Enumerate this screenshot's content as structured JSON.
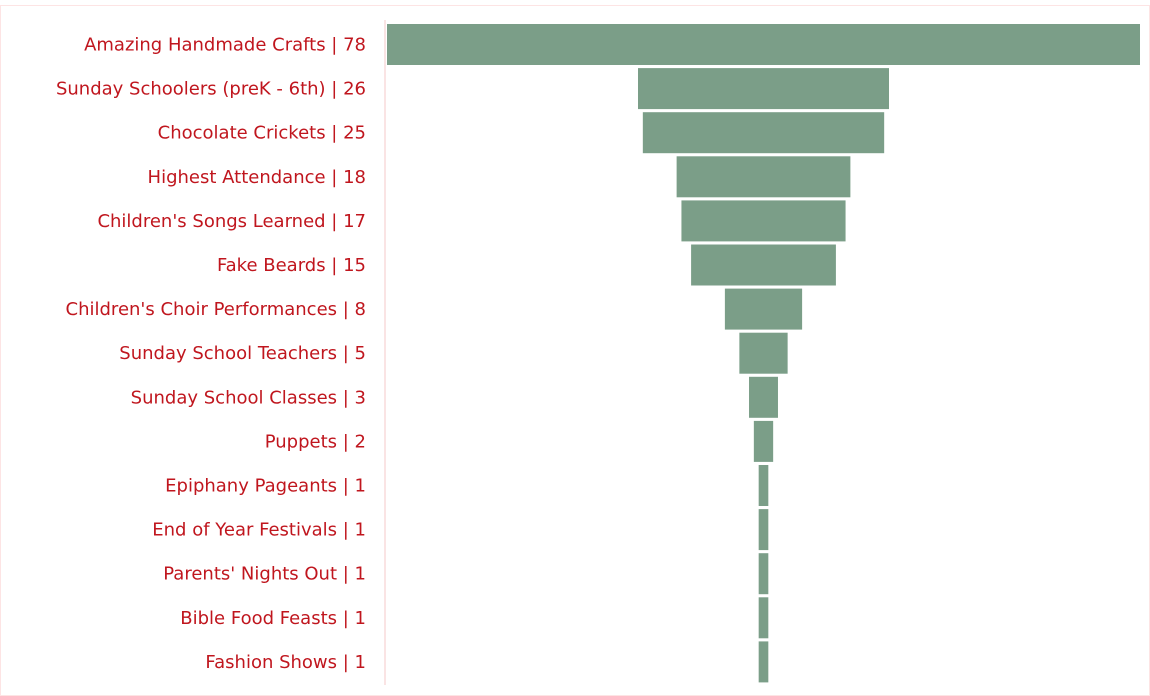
{
  "chart_data": {
    "type": "funnel",
    "categories": [
      "Amazing Handmade Crafts | 78",
      "Sunday Schoolers (preK - 6th) | 26",
      "Chocolate Crickets | 25",
      "Highest Attendance | 18",
      "Children's Songs Learned | 17",
      "Fake Beards | 15",
      "Children's Choir Performances | 8",
      "Sunday School Teachers | 5",
      "Sunday School Classes | 3",
      "Puppets | 2",
      "Epiphany Pageants | 1",
      "End of Year Festivals | 1",
      "Parents' Nights Out | 1",
      "Bible Food Feasts | 1",
      "Fashion Shows | 1"
    ],
    "values": [
      78,
      26,
      25,
      18,
      17,
      15,
      8,
      5,
      3,
      2,
      1,
      1,
      1,
      1,
      1
    ],
    "color": "#7b9e88"
  }
}
